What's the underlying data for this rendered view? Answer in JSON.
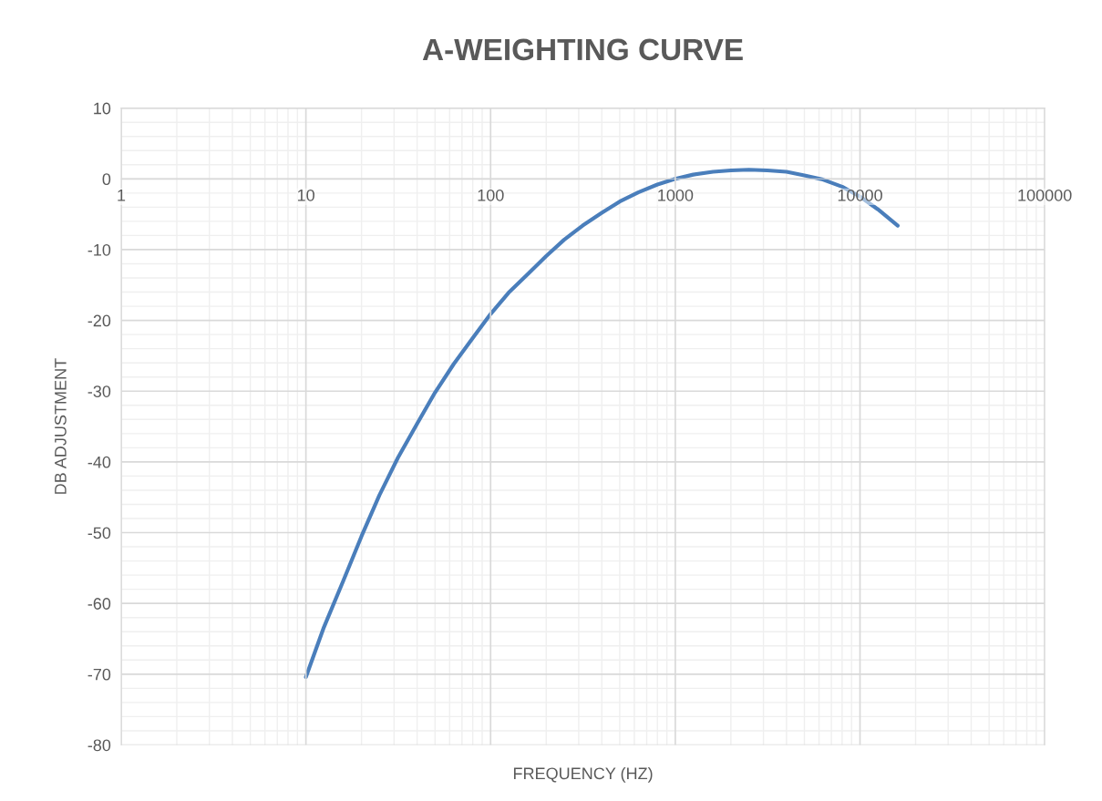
{
  "chart_data": {
    "type": "line",
    "title": "A-WEIGHTING CURVE",
    "xlabel": "FREQUENCY (HZ)",
    "ylabel": "DB ADJUSTMENT",
    "log": "x",
    "xlim": [
      1,
      100000
    ],
    "xticks": [
      1,
      10,
      100,
      1000,
      10000,
      100000
    ],
    "ylim": [
      -80,
      10
    ],
    "yticks": [
      -80,
      -70,
      -60,
      -50,
      -40,
      -30,
      -20,
      -10,
      0,
      10
    ],
    "grid": true,
    "marker": "none",
    "line_style": "solid",
    "series": [
      {
        "color": "#4a7ebb",
        "x": [
          10,
          12.5,
          16,
          20,
          25,
          31.5,
          40,
          50,
          63,
          80,
          100,
          125,
          160,
          200,
          250,
          315,
          400,
          500,
          630,
          800,
          1000,
          1250,
          1600,
          2000,
          2500,
          3150,
          4000,
          5000,
          6300,
          8000,
          10000,
          12500,
          16000
        ],
        "values": [
          -70.4,
          -63.4,
          -56.7,
          -50.5,
          -44.7,
          -39.4,
          -34.6,
          -30.2,
          -26.2,
          -22.5,
          -19.1,
          -16.1,
          -13.4,
          -10.9,
          -8.6,
          -6.6,
          -4.8,
          -3.2,
          -1.9,
          -0.8,
          0,
          0.6,
          1.0,
          1.2,
          1.3,
          1.2,
          1.0,
          0.5,
          -0.1,
          -1.1,
          -2.5,
          -4.3,
          -6.6
        ]
      }
    ]
  }
}
